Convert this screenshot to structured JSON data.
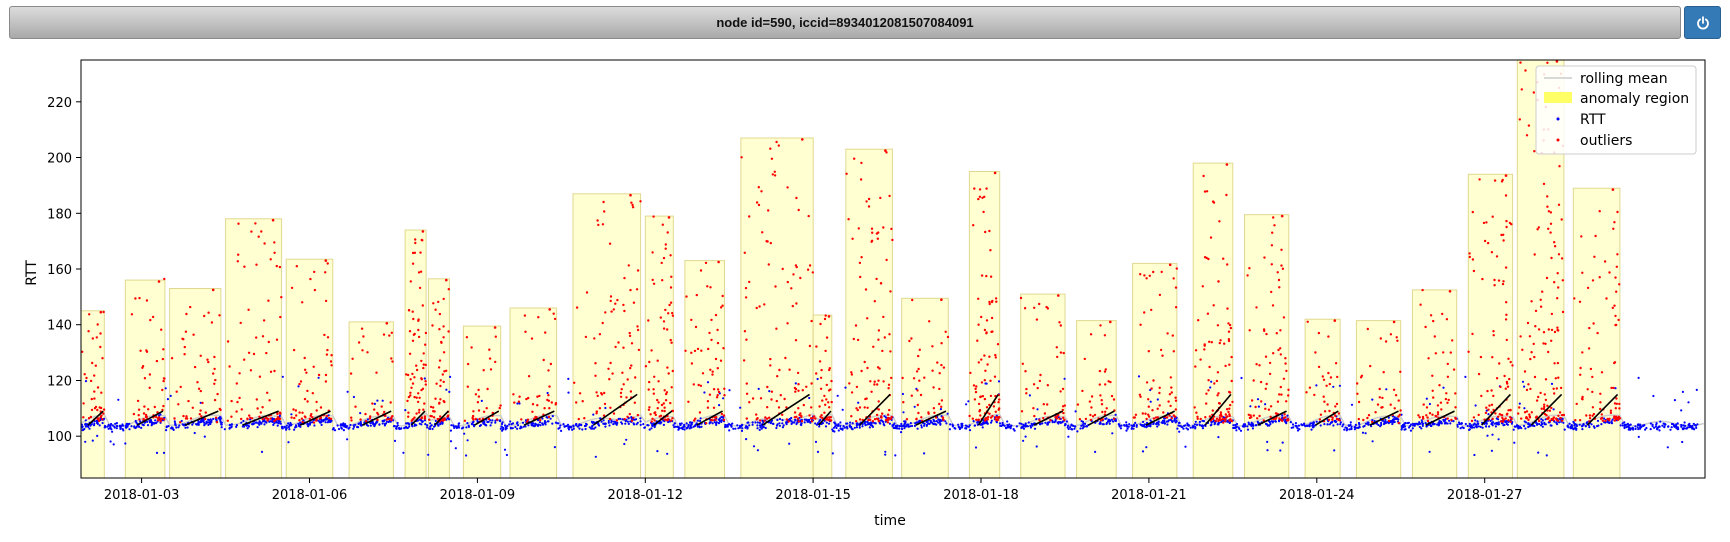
{
  "header": {
    "title": "node id=590, iccid=8934012081507084091",
    "power_icon": "power-icon"
  },
  "colors": {
    "rtt": "#0000ff",
    "outliers": "#ff0000",
    "rolling_mean": "#cccccc",
    "anomaly_fill": "#ffff99",
    "anomaly_edge": "#e0d890"
  },
  "chart_data": {
    "type": "scatter",
    "xlabel": "time",
    "ylabel": "RTT",
    "x_range": [
      "2018-01-01T22:00",
      "2018-01-30T22:30"
    ],
    "ylim": [
      85,
      235
    ],
    "x_ticks": [
      "2018-01-03",
      "2018-01-06",
      "2018-01-09",
      "2018-01-12",
      "2018-01-15",
      "2018-01-18",
      "2018-01-21",
      "2018-01-24",
      "2018-01-27"
    ],
    "y_ticks": [
      100,
      120,
      140,
      160,
      180,
      200,
      220
    ],
    "grid": false,
    "legend": {
      "position": "top-right",
      "entries": [
        "rolling mean",
        "anomaly region",
        "RTT",
        "outliers"
      ]
    },
    "anomaly_regions": [
      {
        "start": "2018-01-01T22:00",
        "end": "2018-01-02T08:00",
        "max": 145
      },
      {
        "start": "2018-01-02T17:00",
        "end": "2018-01-03T10:00",
        "max": 156
      },
      {
        "start": "2018-01-03T12:00",
        "end": "2018-01-04T10:00",
        "max": 153
      },
      {
        "start": "2018-01-04T12:00",
        "end": "2018-01-05T12:00",
        "max": 178
      },
      {
        "start": "2018-01-05T14:00",
        "end": "2018-01-06T10:00",
        "max": 163.5
      },
      {
        "start": "2018-01-06T17:00",
        "end": "2018-01-07T12:00",
        "max": 141
      },
      {
        "start": "2018-01-07T17:00",
        "end": "2018-01-08T02:00",
        "max": 174
      },
      {
        "start": "2018-01-08T03:00",
        "end": "2018-01-08T12:00",
        "max": 156.5
      },
      {
        "start": "2018-01-08T18:00",
        "end": "2018-01-09T10:00",
        "max": 139.5
      },
      {
        "start": "2018-01-09T14:00",
        "end": "2018-01-10T10:00",
        "max": 146
      },
      {
        "start": "2018-01-10T17:00",
        "end": "2018-01-11T22:00",
        "max": 187
      },
      {
        "start": "2018-01-12T00:00",
        "end": "2018-01-12T12:00",
        "max": 179
      },
      {
        "start": "2018-01-12T17:00",
        "end": "2018-01-13T10:00",
        "max": 163
      },
      {
        "start": "2018-01-13T17:00",
        "end": "2018-01-15T00:00",
        "max": 207
      },
      {
        "start": "2018-01-15T00:00",
        "end": "2018-01-15T08:00",
        "max": 143.5
      },
      {
        "start": "2018-01-15T14:00",
        "end": "2018-01-16T10:00",
        "max": 203
      },
      {
        "start": "2018-01-16T14:00",
        "end": "2018-01-17T10:00",
        "max": 149.5
      },
      {
        "start": "2018-01-17T19:00",
        "end": "2018-01-18T08:00",
        "max": 195
      },
      {
        "start": "2018-01-18T17:00",
        "end": "2018-01-19T12:00",
        "max": 151
      },
      {
        "start": "2018-01-19T17:00",
        "end": "2018-01-20T10:00",
        "max": 141.5
      },
      {
        "start": "2018-01-20T17:00",
        "end": "2018-01-21T12:00",
        "max": 162
      },
      {
        "start": "2018-01-21T19:00",
        "end": "2018-01-22T12:00",
        "max": 198
      },
      {
        "start": "2018-01-22T17:00",
        "end": "2018-01-23T12:00",
        "max": 179.5
      },
      {
        "start": "2018-01-23T19:00",
        "end": "2018-01-24T10:00",
        "max": 142
      },
      {
        "start": "2018-01-24T17:00",
        "end": "2018-01-25T12:00",
        "max": 141.5
      },
      {
        "start": "2018-01-25T17:00",
        "end": "2018-01-26T12:00",
        "max": 152.5
      },
      {
        "start": "2018-01-26T17:00",
        "end": "2018-01-27T12:00",
        "max": 194
      },
      {
        "start": "2018-01-27T14:00",
        "end": "2018-01-28T10:00",
        "max": 235
      },
      {
        "start": "2018-01-28T14:00",
        "end": "2018-01-29T10:00",
        "max": 189
      }
    ],
    "series": [
      {
        "name": "rolling mean",
        "kind": "line",
        "baseline": 104.5
      },
      {
        "name": "RTT",
        "kind": "scatter",
        "baseline": 103.5,
        "min": 92,
        "max": 150
      },
      {
        "name": "outliers",
        "kind": "scatter",
        "min": 101,
        "max": 207
      }
    ]
  }
}
